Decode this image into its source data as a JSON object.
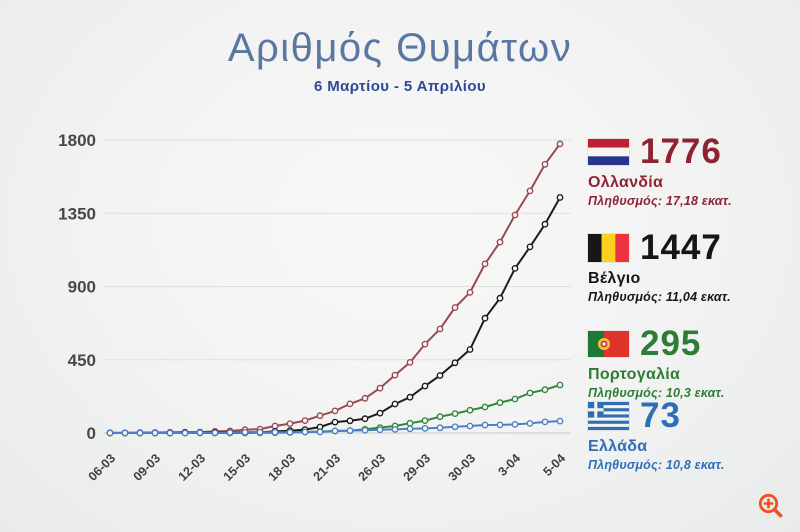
{
  "header": {
    "title": "Αριθμός Θυμάτων",
    "subtitle": "6 Μαρτίου - 5 Απριλίου"
  },
  "chart_data": {
    "type": "line",
    "title": "Αριθμός Θυμάτων",
    "subtitle": "6 Μαρτίου - 5 Απριλίου",
    "xlabel": "",
    "ylabel": "",
    "ylim": [
      0,
      1800
    ],
    "y_ticks": [
      0,
      450,
      900,
      1350,
      1800
    ],
    "x_tick_labels": [
      "06-03",
      "09-03",
      "12-03",
      "15-03",
      "18-03",
      "21-03",
      "26-03",
      "29-03",
      "30-03",
      "3-04",
      "5-04"
    ],
    "x_tick_indices": [
      0,
      3,
      6,
      9,
      12,
      15,
      18,
      21,
      24,
      27,
      30
    ],
    "n_points": 31,
    "grid": true,
    "legend_position": "right",
    "marker": "circle-open",
    "series": [
      {
        "name": "Ολλανδία",
        "color": "#9a4952",
        "values": [
          1,
          1,
          3,
          3,
          4,
          5,
          5,
          10,
          12,
          20,
          24,
          43,
          58,
          76,
          106,
          136,
          179,
          213,
          276,
          356,
          434,
          546,
          639,
          771,
          864,
          1039,
          1173,
          1339,
          1487,
          1651,
          1776
        ]
      },
      {
        "name": "Βέλγιο",
        "color": "#1c1c1c",
        "values": [
          0,
          0,
          0,
          0,
          0,
          3,
          3,
          4,
          4,
          4,
          5,
          10,
          14,
          21,
          37,
          67,
          75,
          88,
          122,
          178,
          220,
          289,
          353,
          431,
          513,
          705,
          828,
          1011,
          1143,
          1283,
          1447
        ]
      },
      {
        "name": "Πορτογαλία",
        "color": "#33843c",
        "values": [
          0,
          0,
          0,
          0,
          0,
          0,
          0,
          0,
          0,
          0,
          1,
          2,
          3,
          6,
          9,
          12,
          14,
          23,
          33,
          43,
          60,
          76,
          100,
          119,
          140,
          160,
          187,
          209,
          246,
          266,
          295
        ]
      },
      {
        "name": "Ελλάδα",
        "color": "#4b80c4",
        "values": [
          0,
          0,
          0,
          0,
          0,
          0,
          1,
          1,
          3,
          4,
          4,
          5,
          5,
          6,
          6,
          13,
          15,
          17,
          20,
          22,
          26,
          28,
          32,
          38,
          43,
          49,
          50,
          53,
          59,
          68,
          73
        ]
      }
    ]
  },
  "legend": [
    {
      "value": "1776",
      "country": "Ολλανδία",
      "population": "Πληθυσμός: 17,18 εκατ.",
      "color": "#8e2433",
      "flag": "netherlands-flag"
    },
    {
      "value": "1447",
      "country": "Βέλγιο",
      "population": "Πληθυσμός: 11,04 εκατ.",
      "color": "#161616",
      "flag": "belgium-flag"
    },
    {
      "value": "295",
      "country": "Πορτογαλία",
      "population": "Πληθυσμός: 10,3 εκατ.",
      "color": "#2d7d36",
      "flag": "portugal-flag"
    },
    {
      "value": "73",
      "country": "Ελλάδα",
      "population": "Πληθυσμός: 10,8 εκατ.",
      "color": "#2f6fb8",
      "flag": "greece-flag"
    }
  ],
  "icons": {
    "zoom_badge": "zoom-in-icon",
    "zoom_badge_color": "#f05123"
  }
}
